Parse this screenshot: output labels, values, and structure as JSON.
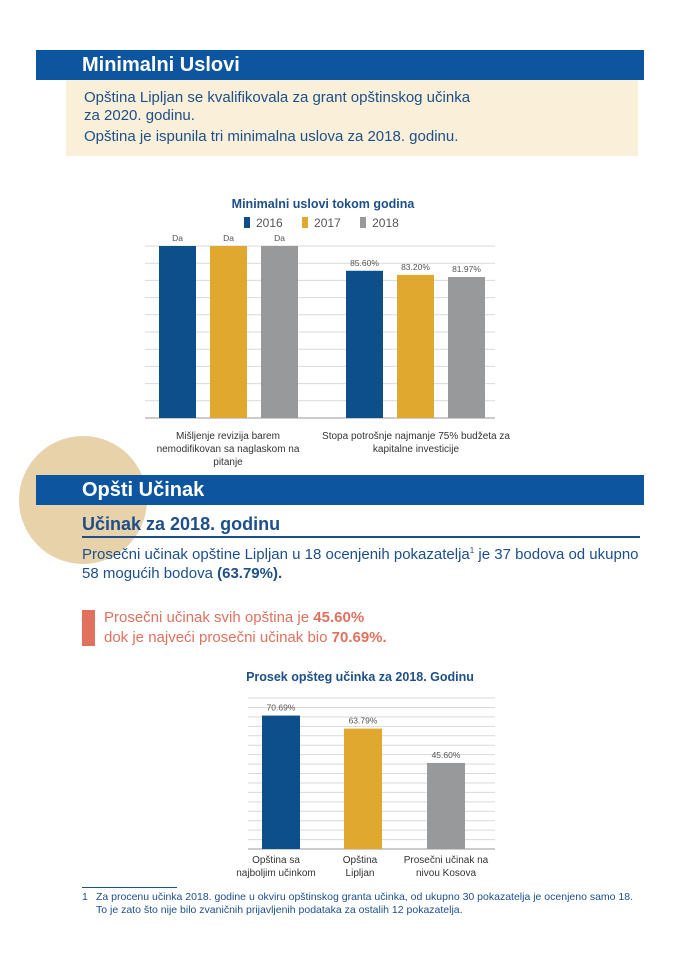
{
  "section1": {
    "title": "Minimalni Uslovi",
    "line1": "Opština Lipljan se kvalifikovala za grant opštinskog učinka",
    "line2": "za 2020. godinu.",
    "line3": "Opština je ispunila tri minimalna uslova za 2018. godinu."
  },
  "chart1": {
    "title": "Minimalni uslovi tokom godina",
    "legend": [
      {
        "name": "2016",
        "color": "#0d4f8b"
      },
      {
        "name": "2017",
        "color": "#e1a830"
      },
      {
        "name": "2018",
        "color": "#98999b"
      }
    ],
    "categories": [
      "Mišljenje revizija barem nemodifikovan sa naglaskom na pitanje",
      "Stopa potrošnje najmanje 75% budžeta za kapitalne investicije"
    ]
  },
  "chart_data": [
    {
      "type": "bar",
      "title": "Minimalni uslovi tokom godina",
      "categories": [
        "Mišljenje revizija barem nemodifikovan sa naglaskom na pitanje",
        "Stopa potrošnje najmanje 75% budžeta za kapitalne investicije"
      ],
      "series": [
        {
          "name": "2016",
          "values": [
            100,
            85.6
          ],
          "labels": [
            "Da",
            "85.60%"
          ],
          "color": "#0d4f8b"
        },
        {
          "name": "2017",
          "values": [
            100,
            83.2
          ],
          "labels": [
            "Da",
            "83.20%"
          ],
          "color": "#e1a830"
        },
        {
          "name": "2018",
          "values": [
            100,
            81.97
          ],
          "labels": [
            "Da",
            "81.97%"
          ],
          "color": "#98999b"
        }
      ],
      "ylim": [
        0,
        100
      ],
      "grid": true,
      "legend_position": "top"
    },
    {
      "type": "bar",
      "title": "Prosek opšteg učinka za 2018. Godinu",
      "categories": [
        "Opština sa najboljim učinkom",
        "Opština Lipljan",
        "Prosečni učinak na nivou Kosova"
      ],
      "values": [
        70.69,
        63.79,
        45.6
      ],
      "labels": [
        "70.69%",
        "63.79%",
        "45.60%"
      ],
      "colors": [
        "#0d4f8b",
        "#e1a830",
        "#98999b"
      ],
      "ylim": [
        0,
        80
      ],
      "grid": true
    }
  ],
  "section2": {
    "title": "Opšti Učinak",
    "subtitle": "Učinak za 2018. godinu",
    "para_part1": "Prosečni učinak opštine Lipljan u 18 ocenjenih pokazatelja",
    "para_sup": "1",
    "para_part2": " je 37 bodova od ukupno 58 mogućih bodova ",
    "para_bold": "(63.79%).",
    "callout_part1": "Prosečni učinak svih opština je ",
    "callout_bold1": "45.60%",
    "callout_part2": "dok je najveći prosečni učinak bio ",
    "callout_bold2": "70.69%."
  },
  "chart2": {
    "title": "Prosek opšteg učinka za 2018. Godinu",
    "categories": [
      "Opština sa najboljim učinkom",
      "Opština Lipljan",
      "Prosečni učinak na nivou Kosova"
    ]
  },
  "footnote": {
    "number": "1",
    "text": "Za procenu učinka 2018. godine u okviru opštinskog granta učinka, od ukupno 30 pokazatelja je ocenjeno samo 18. To je zato što nije bilo zvaničnih prijavljenih podataka za ostalih 12 pokazatelja."
  }
}
